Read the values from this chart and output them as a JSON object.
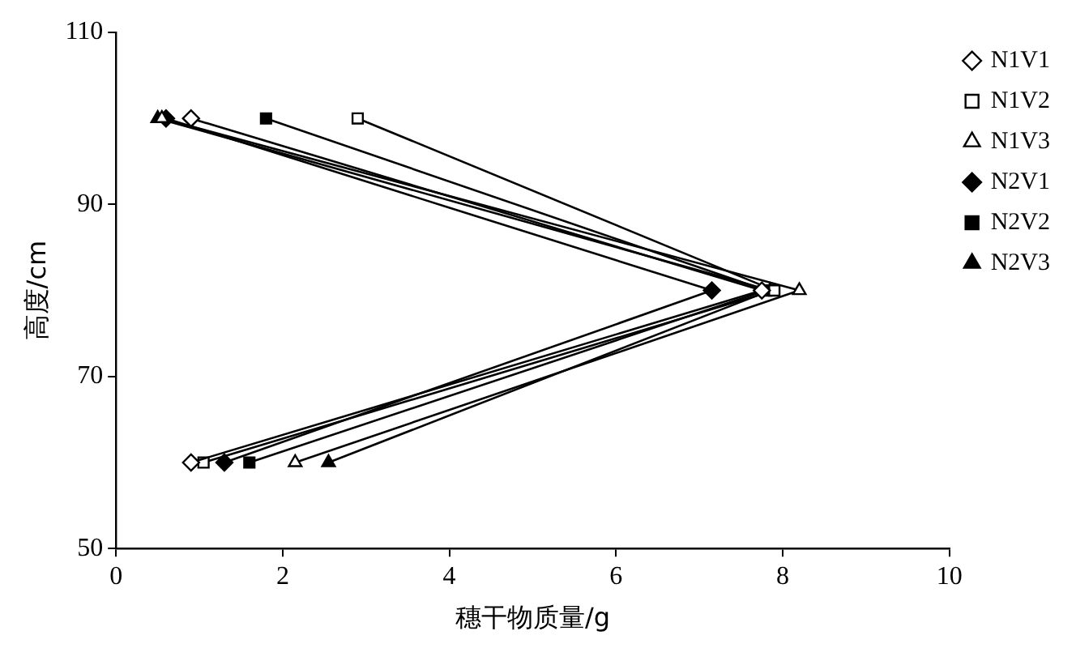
{
  "chart_data": {
    "type": "line",
    "xlabel": "穗干物质量/g",
    "ylabel": "高度/cm",
    "xlim": [
      0,
      10
    ],
    "xticks": [
      0,
      2,
      4,
      6,
      8,
      10
    ],
    "ylim": [
      50,
      110
    ],
    "yticks": [
      50,
      70,
      90,
      110
    ],
    "grid": false,
    "legend": "top right",
    "line_style": "solid",
    "series": [
      {
        "name": "N1V1",
        "color": "#000000",
        "marker": "diamond",
        "x": [
          0.9,
          7.75,
          0.9
        ],
        "values": [
          60,
          80,
          100
        ]
      },
      {
        "name": "N1V2",
        "color": "#000000",
        "marker": "square",
        "x": [
          1.05,
          7.9,
          2.9
        ],
        "values": [
          60,
          80,
          100
        ]
      },
      {
        "name": "N1V3",
        "color": "#000000",
        "marker": "triangle",
        "x": [
          2.15,
          8.2,
          0.55
        ],
        "values": [
          60,
          80,
          100
        ]
      },
      {
        "name": "N2V1",
        "color": "#000000",
        "marker": "diamond",
        "x": [
          1.3,
          7.15,
          0.6
        ],
        "values": [
          60,
          80,
          100
        ]
      },
      {
        "name": "N2V2",
        "color": "#000000",
        "marker": "square",
        "x": [
          1.6,
          7.8,
          1.8
        ],
        "values": [
          60,
          80,
          100
        ]
      },
      {
        "name": "N2V3",
        "color": "#000000",
        "marker": "triangle",
        "x": [
          2.55,
          7.85,
          0.5
        ],
        "values": [
          60,
          80,
          100
        ]
      }
    ]
  }
}
